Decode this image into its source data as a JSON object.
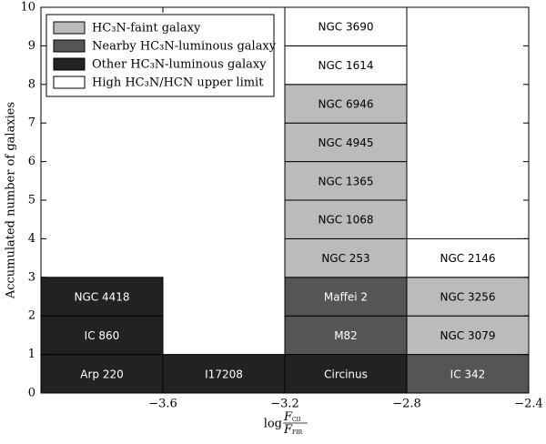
{
  "chart_data": {
    "type": "stacked-boxes",
    "ylabel": "Accumulated number of galaxies",
    "xlabel": {
      "prefix": "log",
      "numerator": "F",
      "numerator_sub": "CII",
      "denominator": "F",
      "denominator_sub": "FIR"
    },
    "xlim": [
      -4.0,
      -2.4
    ],
    "xticks": [
      {
        "value": -3.6,
        "label": "−3.6"
      },
      {
        "value": -3.2,
        "label": "−3.2"
      },
      {
        "value": -2.8,
        "label": "−2.8"
      },
      {
        "value": -2.4,
        "label": "−2.4"
      }
    ],
    "ylim": [
      0,
      10
    ],
    "yticks": [
      0,
      1,
      2,
      3,
      4,
      5,
      6,
      7,
      8,
      9,
      10
    ],
    "legend_position": "upper left",
    "legend_order": [
      2,
      1,
      0,
      3
    ],
    "series": [
      {
        "name": "Other HC₃N-luminous galaxy",
        "color": "#222222",
        "boxes": [
          {
            "label": "Arp 220",
            "bin": [
              -4.0,
              -3.6
            ],
            "count": 1
          },
          {
            "label": "IC 860",
            "bin": [
              -4.0,
              -3.6
            ],
            "count": 1
          },
          {
            "label": "NGC 4418",
            "bin": [
              -4.0,
              -3.6
            ],
            "count": 1
          },
          {
            "label": "I17208",
            "bin": [
              -3.6,
              -3.2
            ],
            "count": 1
          },
          {
            "label": "Circinus",
            "bin": [
              -3.2,
              -2.8
            ],
            "count": 1
          }
        ]
      },
      {
        "name": "Nearby HC₃N-luminous galaxy",
        "color": "#555555",
        "boxes": [
          {
            "label": "M82",
            "bin": [
              -3.2,
              -2.8
            ],
            "count": 1
          },
          {
            "label": "Maffei 2",
            "bin": [
              -3.2,
              -2.8
            ],
            "count": 1
          },
          {
            "label": "IC 342",
            "bin": [
              -2.8,
              -2.4
            ],
            "count": 1
          }
        ]
      },
      {
        "name": "HC₃N-faint galaxy",
        "color": "#bbbbbb",
        "boxes": [
          {
            "label": "NGC 253",
            "bin": [
              -3.2,
              -2.8
            ],
            "count": 1
          },
          {
            "label": "NGC 1068",
            "bin": [
              -3.2,
              -2.8
            ],
            "count": 1
          },
          {
            "label": "NGC 1365",
            "bin": [
              -3.2,
              -2.8
            ],
            "count": 1
          },
          {
            "label": "NGC 4945",
            "bin": [
              -3.2,
              -2.8
            ],
            "count": 1
          },
          {
            "label": "NGC 6946",
            "bin": [
              -3.2,
              -2.8
            ],
            "count": 1
          },
          {
            "label": "NGC 3079",
            "bin": [
              -2.8,
              -2.4
            ],
            "count": 1
          },
          {
            "label": "NGC 3256",
            "bin": [
              -2.8,
              -2.4
            ],
            "count": 1
          }
        ]
      },
      {
        "name": "High HC₃N/HCN upper limit",
        "color": "#ffffff",
        "boxes": [
          {
            "label": "NGC 1614",
            "bin": [
              -3.2,
              -2.8
            ],
            "count": 1
          },
          {
            "label": "NGC 3690",
            "bin": [
              -3.2,
              -2.8
            ],
            "count": 1
          },
          {
            "label": "NGC 2146",
            "bin": [
              -2.8,
              -2.4
            ],
            "count": 1
          }
        ]
      }
    ]
  }
}
